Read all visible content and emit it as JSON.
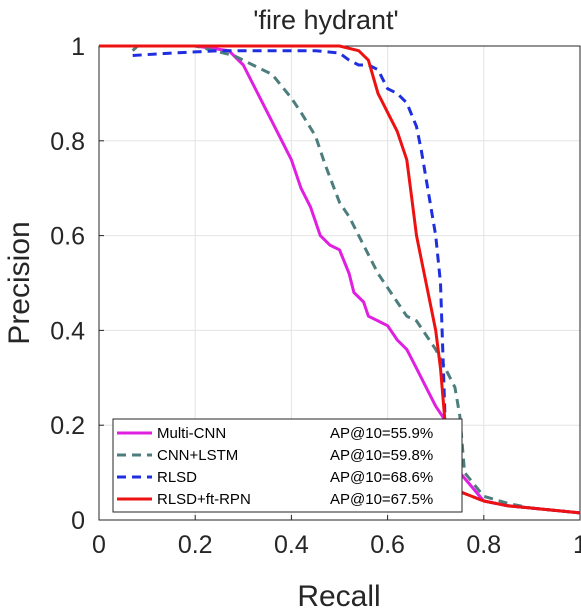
{
  "chart_data": {
    "type": "line",
    "title": "'fire hydrant'",
    "xlabel": "Recall",
    "ylabel": "Precision",
    "xlim": [
      0,
      1
    ],
    "ylim": [
      0,
      1
    ],
    "xticks": [
      "0",
      "0.2",
      "0.4",
      "0.6",
      "0.8",
      "1"
    ],
    "yticks": [
      "0",
      "0.2",
      "0.4",
      "0.6",
      "0.8",
      "1"
    ],
    "grid": true,
    "legend_position": "bottom-left",
    "series": [
      {
        "name": "Multi-CNN",
        "ap": "AP@10=55.9%",
        "color": "#e020e0",
        "dash": "solid",
        "x": [
          0.0,
          0.2,
          0.27,
          0.3,
          0.32,
          0.35,
          0.38,
          0.4,
          0.42,
          0.44,
          0.46,
          0.48,
          0.5,
          0.52,
          0.53,
          0.55,
          0.56,
          0.58,
          0.6,
          0.62,
          0.64,
          0.66,
          0.68,
          0.7,
          0.72,
          0.73,
          0.75,
          0.8,
          0.85,
          0.9,
          0.95,
          1.0
        ],
        "y": [
          1.0,
          1.0,
          0.99,
          0.96,
          0.92,
          0.86,
          0.8,
          0.76,
          0.7,
          0.66,
          0.6,
          0.58,
          0.57,
          0.52,
          0.48,
          0.46,
          0.43,
          0.42,
          0.41,
          0.38,
          0.36,
          0.32,
          0.28,
          0.24,
          0.21,
          0.15,
          0.1,
          0.04,
          0.03,
          0.025,
          0.02,
          0.015
        ]
      },
      {
        "name": "CNN+LSTM",
        "ap": "AP@10=59.8%",
        "color": "#4d7d7d",
        "dash": "dashed",
        "x": [
          0.07,
          0.08,
          0.2,
          0.28,
          0.32,
          0.36,
          0.4,
          0.42,
          0.45,
          0.47,
          0.5,
          0.52,
          0.54,
          0.56,
          0.58,
          0.6,
          0.62,
          0.64,
          0.66,
          0.68,
          0.7,
          0.72,
          0.74,
          0.75,
          0.76,
          0.8,
          0.85,
          0.9,
          0.95,
          1.0
        ],
        "y": [
          0.99,
          1.0,
          1.0,
          0.98,
          0.96,
          0.94,
          0.89,
          0.86,
          0.81,
          0.75,
          0.67,
          0.64,
          0.6,
          0.56,
          0.52,
          0.49,
          0.46,
          0.43,
          0.42,
          0.39,
          0.36,
          0.32,
          0.28,
          0.22,
          0.1,
          0.05,
          0.035,
          0.025,
          0.02,
          0.015
        ]
      },
      {
        "name": "RLSD",
        "ap": "AP@10=68.6%",
        "color": "#1f2fe0",
        "dash": "dashed",
        "x": [
          0.07,
          0.15,
          0.25,
          0.35,
          0.45,
          0.5,
          0.52,
          0.54,
          0.56,
          0.58,
          0.6,
          0.62,
          0.64,
          0.66,
          0.67,
          0.68,
          0.69,
          0.7,
          0.71,
          0.715,
          0.72,
          0.73,
          0.75,
          0.8,
          0.85,
          0.9,
          0.95,
          1.0
        ],
        "y": [
          0.98,
          0.985,
          0.99,
          0.99,
          0.99,
          0.985,
          0.97,
          0.96,
          0.96,
          0.95,
          0.91,
          0.9,
          0.88,
          0.83,
          0.78,
          0.72,
          0.66,
          0.6,
          0.5,
          0.35,
          0.2,
          0.1,
          0.06,
          0.04,
          0.03,
          0.025,
          0.02,
          0.015
        ]
      },
      {
        "name": "RLSD+ft-RPN",
        "ap": "AP@10=67.5%",
        "color": "#ee1111",
        "dash": "solid",
        "x": [
          0.0,
          0.2,
          0.4,
          0.5,
          0.54,
          0.56,
          0.58,
          0.6,
          0.62,
          0.64,
          0.65,
          0.66,
          0.67,
          0.68,
          0.69,
          0.7,
          0.71,
          0.72,
          0.73,
          0.75,
          0.8,
          0.85,
          0.9,
          0.95,
          1.0
        ],
        "y": [
          1.0,
          1.0,
          1.0,
          1.0,
          0.99,
          0.97,
          0.9,
          0.86,
          0.82,
          0.76,
          0.68,
          0.6,
          0.55,
          0.5,
          0.45,
          0.4,
          0.32,
          0.2,
          0.1,
          0.06,
          0.04,
          0.03,
          0.025,
          0.02,
          0.015
        ]
      }
    ]
  }
}
